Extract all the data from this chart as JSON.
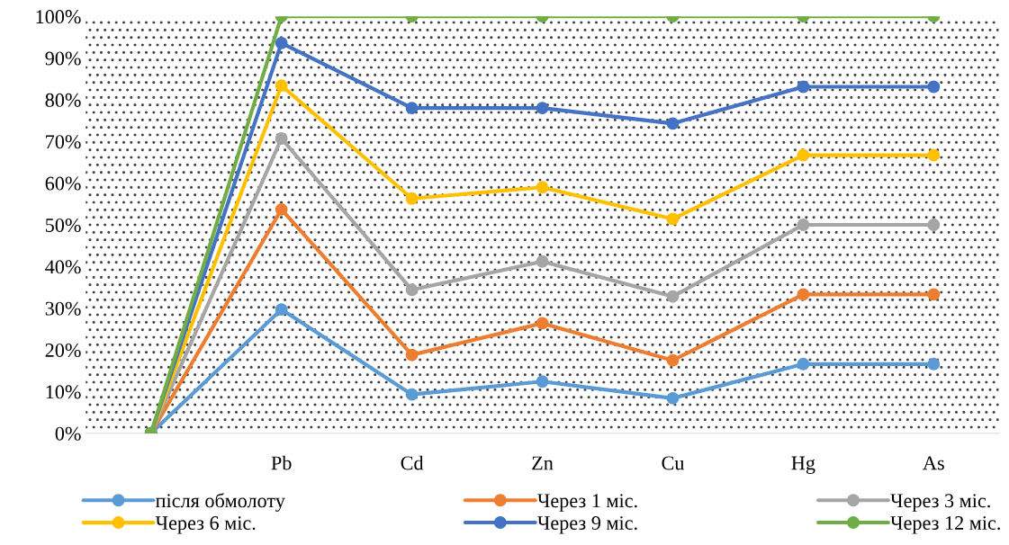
{
  "chart_data": {
    "type": "line",
    "categories": [
      null,
      "Pb",
      "Cd",
      "Zn",
      "Cu",
      "Hg",
      "As"
    ],
    "series": [
      {
        "name": "після обмолоту",
        "color": "#5b9bd5",
        "values": [
          0,
          29.7,
          9.3,
          12.4,
          8.4,
          16.6,
          16.6
        ]
      },
      {
        "name": "Через 1 міс.",
        "color": "#ed7d31",
        "values": [
          0,
          53.7,
          18.8,
          26.4,
          17.5,
          33.3,
          33.3
        ]
      },
      {
        "name": "Через 3 міс.",
        "color": "#a5a5a5",
        "values": [
          0,
          70.7,
          34.4,
          41.2,
          32.8,
          50,
          50
        ]
      },
      {
        "name": "Через 6 міс.",
        "color": "#ffc000",
        "values": [
          0,
          83.4,
          56.3,
          59,
          51.4,
          66.7,
          66.7
        ]
      },
      {
        "name": "Через 9 міс.",
        "color": "#4472c4",
        "values": [
          0,
          93.6,
          78,
          78,
          74.3,
          83.1,
          83.1
        ]
      },
      {
        "name": "Через 12 міс.",
        "color": "#70ad47",
        "values": [
          0,
          100,
          100,
          100,
          100,
          100,
          100
        ]
      }
    ],
    "ylim": [
      0,
      100
    ],
    "yticks": [
      {
        "value": 0,
        "label": "0%"
      },
      {
        "value": 10,
        "label": "10%"
      },
      {
        "value": 20,
        "label": "20%"
      },
      {
        "value": 30,
        "label": "30%"
      },
      {
        "value": 40,
        "label": "40%"
      },
      {
        "value": 50,
        "label": "50%"
      },
      {
        "value": 60,
        "label": "60%"
      },
      {
        "value": 70,
        "label": "70%"
      },
      {
        "value": 80,
        "label": "80%"
      },
      {
        "value": 90,
        "label": "90%"
      },
      {
        "value": 100,
        "label": "100%"
      }
    ],
    "legend": "bottom",
    "marker": "circle",
    "line_style": "solid",
    "grid": false
  }
}
